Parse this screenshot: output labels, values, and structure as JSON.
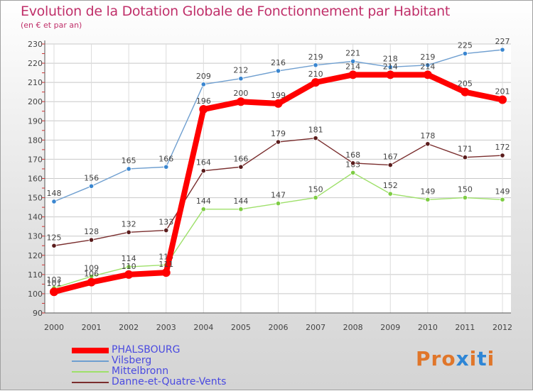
{
  "chart_data": {
    "type": "line",
    "title": "Evolution de la Dotation Globale de Fonctionnement par Habitant",
    "subtitle": "(en € et par an)",
    "categories": [
      "2000",
      "2001",
      "2002",
      "2003",
      "2004",
      "2005",
      "2006",
      "2007",
      "2008",
      "2009",
      "2010",
      "2011",
      "2012"
    ],
    "ylim": [
      90,
      230
    ],
    "yticks": [
      90,
      100,
      110,
      120,
      130,
      140,
      150,
      160,
      170,
      180,
      190,
      200,
      210,
      220,
      230
    ],
    "grid": true,
    "legend_position": "bottom-left",
    "series": [
      {
        "name": "Vilsberg",
        "color": "#6f9fd0",
        "marker": "#3a86d0",
        "values": [
          148,
          156,
          165,
          166,
          209,
          212,
          216,
          219,
          221,
          218,
          219,
          225,
          227
        ],
        "labels_below": false
      },
      {
        "name": "Mittelbronn",
        "color": "#9ee06a",
        "marker": "#7ecc44",
        "values": [
          103,
          109,
          114,
          115,
          144,
          144,
          147,
          150,
          163,
          152,
          149,
          150,
          149
        ],
        "labels_below": false
      },
      {
        "name": "Danne-et-Quatre-Vents",
        "color": "#7a2e2e",
        "marker": "#5a1c1c",
        "values": [
          125,
          128,
          132,
          133,
          164,
          166,
          179,
          181,
          168,
          167,
          178,
          171,
          172
        ],
        "labels_below": false
      },
      {
        "name": "PHALSBOURG",
        "color": "#ff0000",
        "marker": "#ff0000",
        "values": [
          101,
          106,
          110,
          111,
          196,
          200,
          199,
          210,
          214,
          214,
          214,
          205,
          201
        ],
        "labels_below": false,
        "bold": true
      }
    ]
  },
  "legend": [
    {
      "name": "PHALSBOURG",
      "color": "#ff0000",
      "bold": true
    },
    {
      "name": "Vilsberg",
      "color": "#6f9fd0",
      "bold": false
    },
    {
      "name": "Mittelbronn",
      "color": "#9ee06a",
      "bold": false
    },
    {
      "name": "Danne-et-Quatre-Vents",
      "color": "#7a2e2e",
      "bold": false
    }
  ],
  "logo": {
    "text": "Proxiti",
    "colors": [
      "#e0762a",
      "#e0762a",
      "#e0762a",
      "#2e86d6",
      "#e0762a",
      "#2e86d6",
      "#e0762a"
    ]
  }
}
